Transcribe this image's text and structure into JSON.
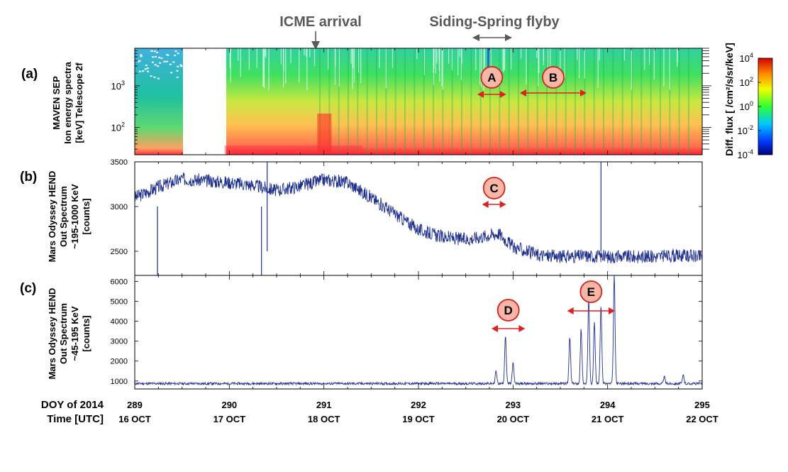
{
  "top_annotations": {
    "icme": "ICME arrival",
    "flyby": "Siding-Spring flyby"
  },
  "panels": {
    "a": {
      "tag": "(a)",
      "ylabel": [
        "MAVEN SEP",
        "Ion energy spectra",
        "[keV] Telescope 2f"
      ],
      "ytick_base": "10",
      "ytick_exps": [
        "2",
        "3"
      ],
      "colorbar_label": "Diff. flux [ /cm²/s/sr/keV]",
      "colorbar_base": "10",
      "colorbar_exps": [
        "4",
        "2",
        "0",
        "-2",
        "-4"
      ]
    },
    "b": {
      "tag": "(b)",
      "ylabel": [
        "Mars Odyssey HEND",
        "Out Spectrum",
        "~195-1000 KeV",
        "[counts]"
      ]
    },
    "c": {
      "tag": "(c)",
      "ylabel": [
        "Mars Odyssey HEND",
        "Out Spectrum",
        "~45-195 KeV",
        "[counts]"
      ]
    }
  },
  "markers": [
    {
      "label": "A"
    },
    {
      "label": "B"
    },
    {
      "label": "C"
    },
    {
      "label": "D"
    },
    {
      "label": "E"
    }
  ],
  "xaxis": {
    "label_line1": "DOY of 2014",
    "label_line2": "Time [UTC]",
    "doy": [
      "289",
      "290",
      "291",
      "292",
      "293",
      "294",
      "295"
    ],
    "dates": [
      "16 OCT",
      "17 OCT",
      "18 OCT",
      "19 OCT",
      "20 OCT",
      "21 OCT",
      "22 OCT"
    ]
  },
  "colors": {
    "trace": "#1f2f8c",
    "marker_fill": "#f7b6a6",
    "marker_stroke": "#d42020",
    "arrow_red": "#e02020",
    "annotation_gray": "#595959"
  },
  "chart_data": [
    {
      "type": "heatmap",
      "panel": "a",
      "x_range_doy": [
        289,
        295
      ],
      "y_scale": "log",
      "y_ticks": [
        100,
        1000
      ],
      "color_scale": "log",
      "color_range": [
        0.0001,
        10000
      ],
      "data_gap_doy": [
        289.5,
        289.95
      ],
      "events": [
        {
          "name": "ICME arrival",
          "doy": 290.93
        },
        {
          "name": "Siding-Spring flyby",
          "doy_range": [
            292.55,
            292.95
          ]
        },
        {
          "name": "A",
          "doy_range": [
            292.6,
            292.95
          ]
        },
        {
          "name": "B",
          "doy_range": [
            293.05,
            293.8
          ]
        }
      ]
    },
    {
      "type": "line",
      "panel": "b",
      "x_range_doy": [
        289,
        295
      ],
      "ylim": [
        2230,
        3500
      ],
      "yticks": [
        2500,
        3000,
        3500
      ],
      "x": [
        289.0,
        289.25,
        289.5,
        289.75,
        290.0,
        290.25,
        290.5,
        290.75,
        291.0,
        291.25,
        291.5,
        291.75,
        292.0,
        292.25,
        292.5,
        292.75,
        292.85,
        293.0,
        293.25,
        293.5,
        293.75,
        294.0,
        294.25,
        294.5,
        294.75,
        295.0
      ],
      "y": [
        3100,
        3220,
        3310,
        3290,
        3270,
        3240,
        3180,
        3230,
        3300,
        3270,
        3100,
        2920,
        2740,
        2660,
        2630,
        2680,
        2700,
        2550,
        2460,
        2440,
        2450,
        2440,
        2440,
        2440,
        2450,
        2440
      ],
      "events": [
        {
          "name": "C",
          "doy_range": [
            292.65,
            292.95
          ]
        }
      ]
    },
    {
      "type": "line",
      "panel": "c",
      "x_range_doy": [
        289,
        295
      ],
      "ylim": [
        600,
        6300
      ],
      "yticks": [
        1000,
        2000,
        3000,
        4000,
        5000,
        6000
      ],
      "baseline": 870,
      "peaks": [
        {
          "doy": 292.82,
          "value": 1500
        },
        {
          "doy": 292.92,
          "value": 3300
        },
        {
          "doy": 293.0,
          "value": 1900
        },
        {
          "doy": 293.6,
          "value": 3200
        },
        {
          "doy": 293.72,
          "value": 3600
        },
        {
          "doy": 293.8,
          "value": 5100
        },
        {
          "doy": 293.86,
          "value": 4000
        },
        {
          "doy": 293.93,
          "value": 4800
        },
        {
          "doy": 294.07,
          "value": 6300
        },
        {
          "doy": 294.6,
          "value": 1200
        },
        {
          "doy": 294.8,
          "value": 1300
        }
      ],
      "events": [
        {
          "name": "D",
          "doy_range": [
            292.75,
            293.15
          ]
        },
        {
          "name": "E",
          "doy_range": [
            293.55,
            294.1
          ]
        }
      ]
    }
  ]
}
